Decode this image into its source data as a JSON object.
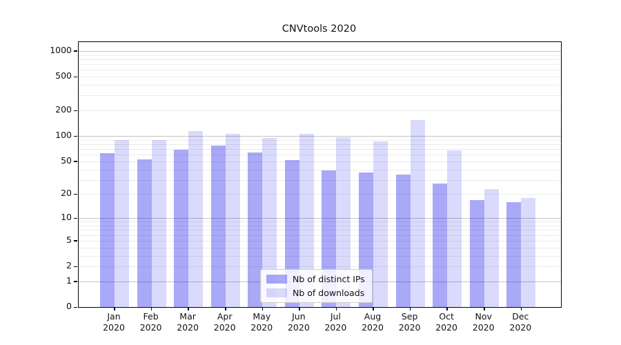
{
  "chart_data": {
    "type": "bar",
    "title": "CNVtools 2020",
    "yscale": "log1p",
    "ylim": [
      0,
      1271
    ],
    "grid": true,
    "legend_position": "lower center",
    "categories": [
      {
        "month": "Jan",
        "year": "2020"
      },
      {
        "month": "Feb",
        "year": "2020"
      },
      {
        "month": "Mar",
        "year": "2020"
      },
      {
        "month": "Apr",
        "year": "2020"
      },
      {
        "month": "May",
        "year": "2020"
      },
      {
        "month": "Jun",
        "year": "2020"
      },
      {
        "month": "Jul",
        "year": "2020"
      },
      {
        "month": "Aug",
        "year": "2020"
      },
      {
        "month": "Sep",
        "year": "2020"
      },
      {
        "month": "Oct",
        "year": "2020"
      },
      {
        "month": "Nov",
        "year": "2020"
      },
      {
        "month": "Dec",
        "year": "2020"
      }
    ],
    "series": [
      {
        "name": "Nb of distinct IPs",
        "base_color": "#0a0aeb",
        "alpha": 0.35,
        "values": [
          62,
          53,
          69,
          77,
          64,
          52,
          39,
          37,
          35,
          27,
          17,
          16
        ]
      },
      {
        "name": "Nb of downloads",
        "base_color": "#0a0aeb",
        "alpha": 0.15,
        "values": [
          90,
          89,
          115,
          106,
          95,
          107,
          96,
          87,
          153,
          67,
          23,
          18
        ]
      }
    ],
    "yticks": [
      0,
      1,
      2,
      5,
      10,
      20,
      50,
      100,
      200,
      500,
      1000
    ],
    "major_grid_values": [
      1,
      10,
      100,
      1000
    ],
    "minor_grid_values": [
      2,
      3,
      4,
      5,
      6,
      7,
      8,
      9,
      20,
      30,
      40,
      50,
      60,
      70,
      80,
      90,
      200,
      300,
      400,
      500,
      600,
      700,
      800,
      900
    ],
    "style": {
      "major_grid_color": "#c3c3c3",
      "minor_grid_color": "#ececec",
      "spine_color": "#000000",
      "text_color": "#111111"
    }
  }
}
